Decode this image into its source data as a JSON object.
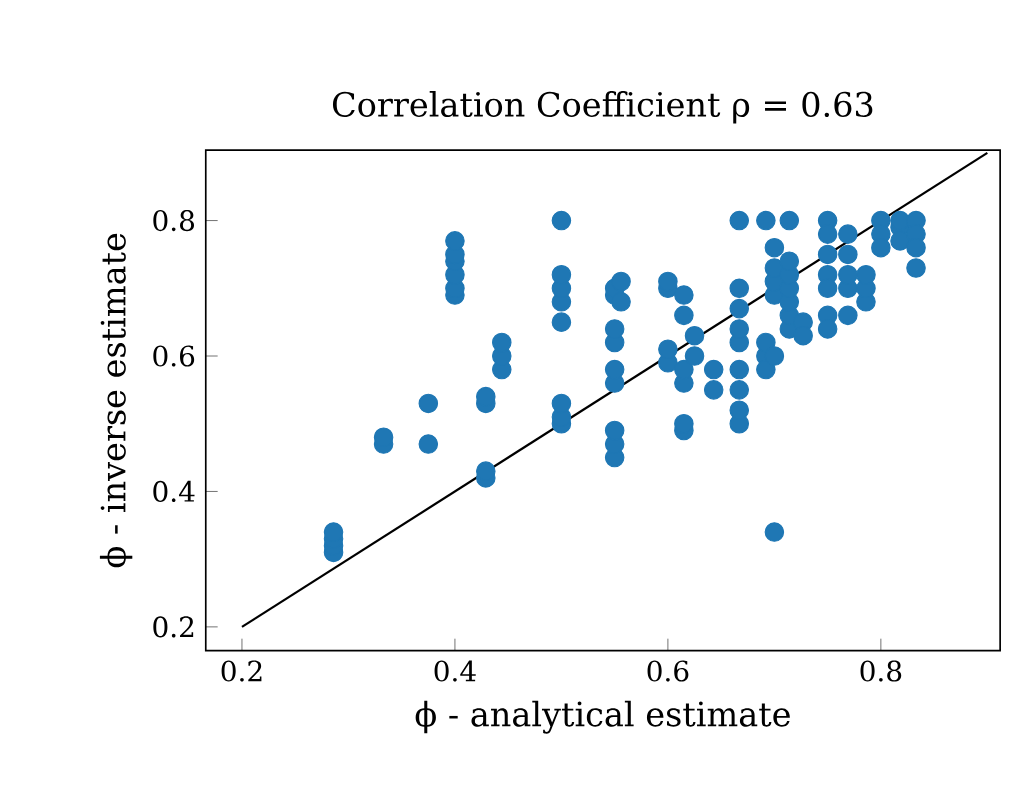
{
  "chart_data": {
    "type": "scatter",
    "title": "Correlation Coefficient ρ = 0.63",
    "xlabel": "ϕ - analytical estimate",
    "ylabel": "ϕ - inverse estimate",
    "xlim": [
      0.166,
      0.912
    ],
    "ylim": [
      0.165,
      0.904
    ],
    "xticks": [
      0.2,
      0.4,
      0.6,
      0.8
    ],
    "yticks": [
      0.2,
      0.4,
      0.6,
      0.8
    ],
    "grid": false,
    "series": [
      {
        "type": "scatter",
        "color": "#1f77b4",
        "marker": "circle",
        "x": [
          0.286,
          0.286,
          0.286,
          0.286,
          0.333,
          0.333,
          0.375,
          0.375,
          0.4,
          0.4,
          0.4,
          0.4,
          0.4,
          0.4,
          0.429,
          0.429,
          0.429,
          0.429,
          0.444,
          0.444,
          0.444,
          0.5,
          0.5,
          0.5,
          0.5,
          0.5,
          0.5,
          0.5,
          0.5,
          0.55,
          0.55,
          0.55,
          0.55,
          0.55,
          0.55,
          0.55,
          0.55,
          0.55,
          0.556,
          0.556,
          0.6,
          0.6,
          0.6,
          0.6,
          0.615,
          0.615,
          0.615,
          0.615,
          0.615,
          0.615,
          0.625,
          0.625,
          0.643,
          0.643,
          0.667,
          0.667,
          0.667,
          0.667,
          0.667,
          0.667,
          0.667,
          0.667,
          0.667,
          0.692,
          0.692,
          0.692,
          0.692,
          0.7,
          0.7,
          0.7,
          0.7,
          0.7,
          0.7,
          0.714,
          0.714,
          0.714,
          0.714,
          0.714,
          0.714,
          0.714,
          0.727,
          0.727,
          0.75,
          0.75,
          0.75,
          0.75,
          0.75,
          0.75,
          0.75,
          0.769,
          0.769,
          0.769,
          0.769,
          0.769,
          0.786,
          0.786,
          0.786,
          0.8,
          0.8,
          0.8,
          0.818,
          0.818,
          0.818,
          0.833,
          0.833,
          0.833,
          0.833
        ],
        "values": [
          0.31,
          0.32,
          0.33,
          0.34,
          0.47,
          0.48,
          0.47,
          0.53,
          0.69,
          0.7,
          0.72,
          0.74,
          0.75,
          0.77,
          0.42,
          0.43,
          0.53,
          0.54,
          0.58,
          0.6,
          0.62,
          0.8,
          0.5,
          0.51,
          0.53,
          0.68,
          0.7,
          0.72,
          0.65,
          0.45,
          0.47,
          0.49,
          0.56,
          0.58,
          0.62,
          0.64,
          0.69,
          0.7,
          0.71,
          0.68,
          0.59,
          0.61,
          0.7,
          0.71,
          0.49,
          0.5,
          0.56,
          0.58,
          0.66,
          0.69,
          0.6,
          0.63,
          0.55,
          0.58,
          0.8,
          0.5,
          0.52,
          0.55,
          0.58,
          0.62,
          0.64,
          0.67,
          0.7,
          0.6,
          0.58,
          0.62,
          0.8,
          0.34,
          0.69,
          0.71,
          0.73,
          0.76,
          0.6,
          0.8,
          0.64,
          0.66,
          0.68,
          0.7,
          0.72,
          0.74,
          0.65,
          0.63,
          0.8,
          0.78,
          0.75,
          0.72,
          0.7,
          0.66,
          0.64,
          0.66,
          0.7,
          0.72,
          0.75,
          0.78,
          0.68,
          0.7,
          0.72,
          0.8,
          0.78,
          0.76,
          0.79,
          0.8,
          0.77,
          0.8,
          0.78,
          0.76,
          0.73
        ]
      },
      {
        "type": "line",
        "color": "#000000",
        "marker": "none",
        "x": [
          0.2,
          0.9
        ],
        "values": [
          0.2,
          0.9
        ]
      }
    ]
  }
}
